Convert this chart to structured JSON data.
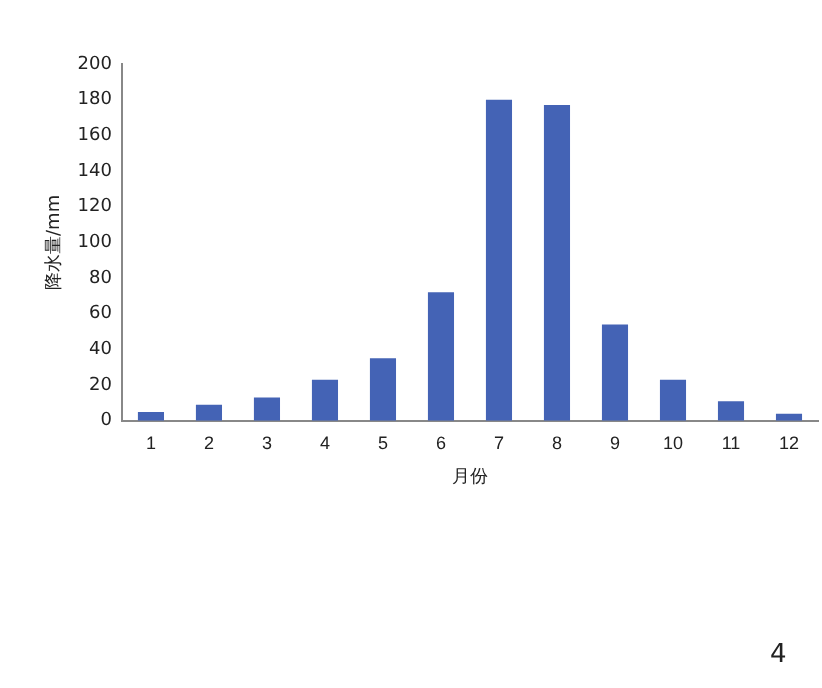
{
  "chart_data": {
    "type": "bar",
    "xlabel": "月份",
    "ylabel": "降水量/mm",
    "categories": [
      "1",
      "2",
      "3",
      "4",
      "5",
      "6",
      "7",
      "8",
      "9",
      "10",
      "11",
      "12"
    ],
    "values": [
      5,
      9,
      13,
      23,
      35,
      72,
      180,
      177,
      54,
      23,
      11,
      4
    ],
    "color": "#4463b5",
    "ylim": [
      0,
      200
    ],
    "yticks": [
      0,
      20,
      40,
      60,
      80,
      100,
      120,
      140,
      160,
      180,
      200
    ],
    "grid": false,
    "legend": false,
    "annotations": [
      "4"
    ]
  }
}
